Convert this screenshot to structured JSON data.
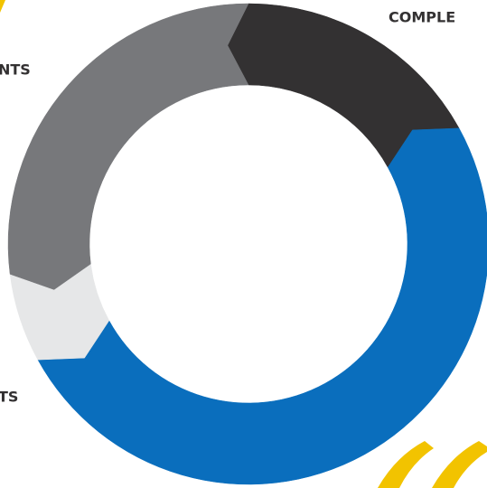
{
  "chart_data": {
    "type": "donut",
    "categories": [
      "COMPLE",
      null,
      "TS",
      "NTS"
    ],
    "values": [
      17,
      50,
      6,
      27
    ],
    "colors": [
      "#333132",
      "#0a6ebd",
      "#e6e7e8",
      "#77787b"
    ]
  }
}
